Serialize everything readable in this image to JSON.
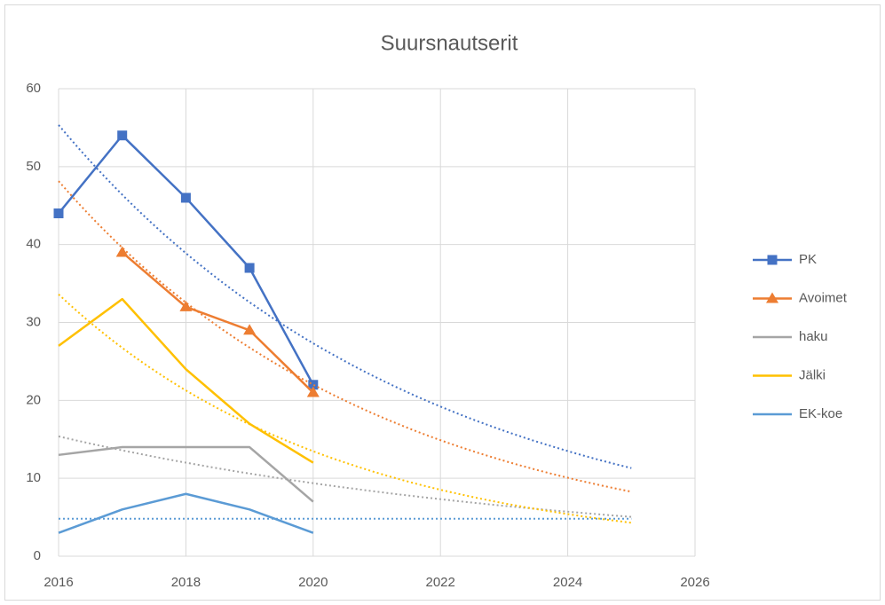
{
  "chart_data": {
    "type": "line",
    "title": "Suursnautserit",
    "x": [
      2016,
      2017,
      2018,
      2019,
      2020
    ],
    "xlim": [
      2016,
      2026
    ],
    "xticks": [
      2016,
      2018,
      2020,
      2022,
      2024,
      2026
    ],
    "ylim": [
      0,
      60
    ],
    "yticks": [
      0,
      10,
      20,
      30,
      40,
      50,
      60
    ],
    "grid": true,
    "legend": "right",
    "series": [
      {
        "name": "PK",
        "color": "#4472c4",
        "marker": "square",
        "values": [
          44,
          54,
          46,
          37,
          22
        ],
        "trendline": {
          "type": "exponential",
          "x_range": [
            2016,
            2025
          ]
        }
      },
      {
        "name": "Avoimet",
        "color": "#ed7d31",
        "marker": "triangle",
        "values": [
          null,
          39,
          32,
          29,
          21
        ],
        "trendline": {
          "type": "exponential",
          "x_range": [
            2016,
            2025
          ]
        }
      },
      {
        "name": "haku",
        "color": "#a5a5a5",
        "marker": "none",
        "values": [
          13,
          14,
          14,
          14,
          7
        ],
        "trendline": {
          "type": "exponential",
          "x_range": [
            2016,
            2025
          ]
        }
      },
      {
        "name": "Jälki",
        "color": "#ffc000",
        "marker": "none",
        "values": [
          27,
          33,
          24,
          17,
          12
        ],
        "trendline": {
          "type": "exponential",
          "x_range": [
            2016,
            2025
          ]
        }
      },
      {
        "name": "EK-koe",
        "color": "#5b9bd5",
        "marker": "none",
        "values": [
          3,
          6,
          8,
          6,
          3
        ],
        "trendline": {
          "type": "exponential",
          "x_range": [
            2016,
            2025
          ]
        }
      }
    ]
  }
}
